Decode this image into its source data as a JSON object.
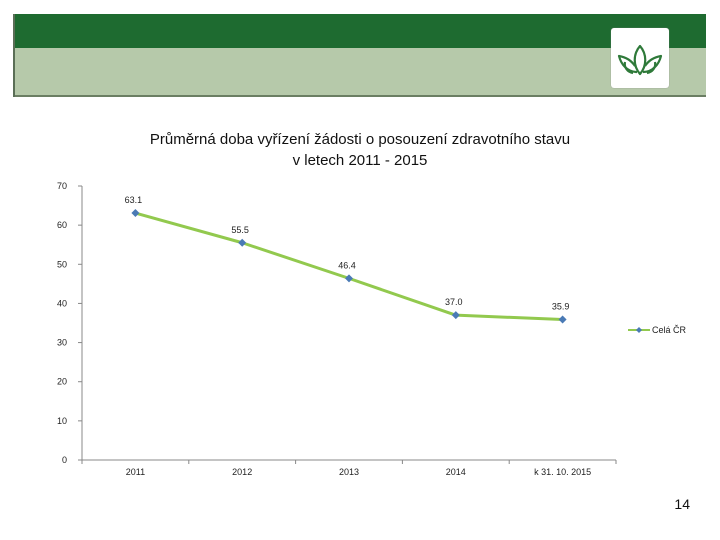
{
  "colors": {
    "banner_dark": "#1e6b30",
    "banner_light": "#b6c9aa",
    "line": "#92c94e",
    "marker": "#4a7ab5"
  },
  "logo": {
    "icon": "leaf-logo-icon"
  },
  "chart_data": {
    "type": "line",
    "title_lines": [
      "Průměrná doba vyřízení žádosti o posouzení zdravotního stavu",
      "v letech 2011 - 2015"
    ],
    "categories": [
      "2011",
      "2012",
      "2013",
      "2014",
      "k 31. 10. 2015"
    ],
    "series": [
      {
        "name": "Celá ČR",
        "values": [
          63.1,
          55.5,
          46.4,
          37.0,
          35.9
        ],
        "labels": [
          "63.1",
          "55.5",
          "46.4",
          "37.0",
          "35.9"
        ]
      }
    ],
    "ylim": [
      0,
      70
    ],
    "yticks": [
      0,
      10,
      20,
      30,
      40,
      50,
      60,
      70
    ],
    "grid": false,
    "legend": "right",
    "xlabel": "",
    "ylabel": ""
  },
  "page_number": "14"
}
